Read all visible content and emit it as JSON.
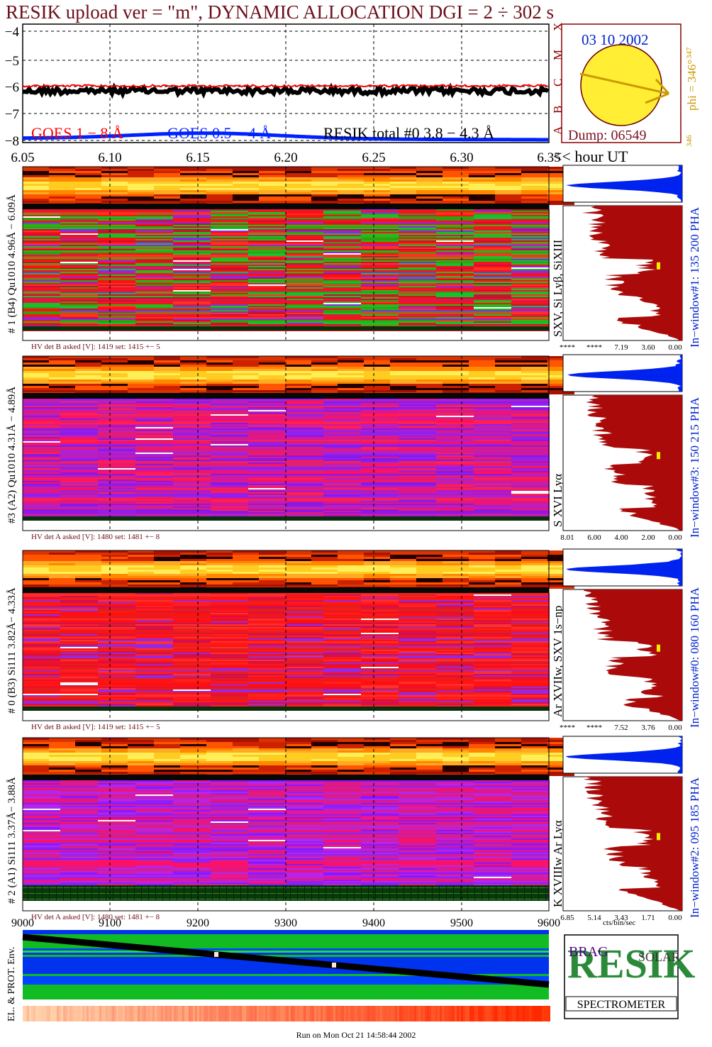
{
  "title": "RESIK upload ver = \"m\", DYNAMIC ALLOCATION  DGI =   2 ÷ 302 s",
  "lightcurve": {
    "y_ticks": [
      "−4",
      "−5",
      "−6",
      "−7",
      "−8"
    ],
    "x_ticks": [
      "6.05",
      "6.10",
      "6.15",
      "6.20",
      "6.25",
      "6.30",
      "6.35"
    ],
    "x_unit_label": "<< hour UT",
    "legend": {
      "goes_long": "GOES 1 − 8 Å",
      "goes_short": "GOES 0.5 − 4 Å",
      "resik": "RESIK total #0  3.8 − 4.3 Å"
    },
    "class_letters": [
      "A",
      "B",
      "C",
      "M",
      "X"
    ],
    "colors": {
      "goes_long": "#ff0000",
      "goes_short": "#0022ff",
      "resik": "#000000"
    }
  },
  "sun_panel": {
    "date": "03 10 2002",
    "dump": "Dump: 06549",
    "phi_label": "phi = 346°",
    "phi_sup": "347",
    "phi_bottom": "346"
  },
  "detectors": [
    {
      "left_label": "# 1 (B4) Qu1010 4.96Å − 6.09Å",
      "line_label": "SXV, Si Lyβ, SiXIII",
      "hv": "HV det B asked [V]:  1419 set:  1415  +−    5",
      "pha": "In−window#1:  135 200 PHA",
      "x_ticks": [
        "****",
        "****",
        "7.19",
        "3.60",
        "0.00"
      ],
      "style": "green"
    },
    {
      "left_label": "#3 (A2) Qu1010  4.31Å − 4.89Å",
      "line_label": "S XVI Lyα",
      "hv": "HV det A asked [V]:  1480 set:  1481  +−    8",
      "pha": "In−window#3:  150 215 PHA",
      "x_ticks": [
        "8.01",
        "6.00",
        "4.00",
        "2.00",
        "0.00"
      ],
      "style": "magenta"
    },
    {
      "left_label": "# 0 (B3) Si111  3.82Å− 4.33Å",
      "line_label": "Ar XVIIw,  SXV 1s−np",
      "hv": "HV det B asked [V]:  1419 set:  1415  +−    5",
      "pha": "In−window#0:  080 160 PHA",
      "x_ticks": [
        "****",
        "****",
        "7.52",
        "3.76",
        "0.00"
      ],
      "style": "red"
    },
    {
      "left_label": "# 2 (A1) Si111  3.37Å−  3.88Å",
      "line_label": "K XVIIIw  Ar Lyα",
      "hv": "HV det A asked [V]:  1480 set:  1481  +−    8",
      "pha": "In−window#2:  095 185 PHA",
      "x_ticks": [
        "6.85",
        "5.14",
        "3.43",
        "1.71",
        "0.00"
      ],
      "style": "violet"
    }
  ],
  "spectrum_unit": "cts/bin/sec",
  "env": {
    "x_ticks": [
      "9000",
      "9100",
      "9200",
      "9300",
      "9400",
      "9500",
      "9600"
    ],
    "left_label": "EL. & PROT. Env."
  },
  "logo": {
    "letters": "RESIK",
    "top_left": "BRAG",
    "top_right": "SOLAR",
    "banner": "SPECTROMETER"
  },
  "run_line": "Run on Mon Oct 21 14:58:44 2002"
}
